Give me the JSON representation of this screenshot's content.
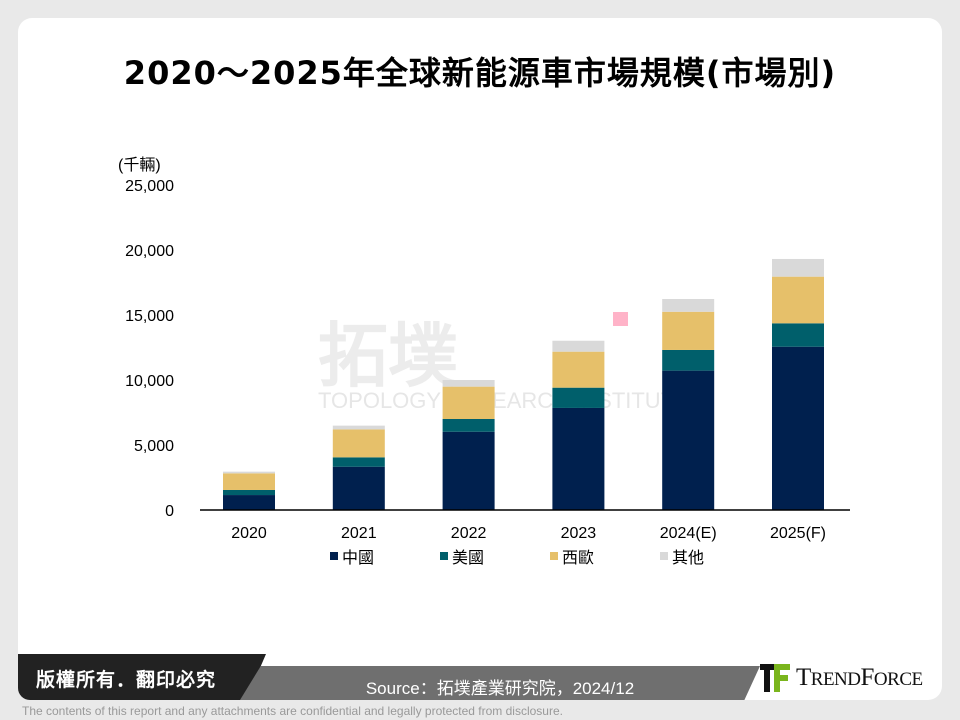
{
  "title": "2020～2025年全球新能源車市場規模(市場別)",
  "chart_data": {
    "type": "bar",
    "stacked": true,
    "title": "2020～2025年全球新能源車市場規模(市場別)",
    "ylabel": "(千輛)",
    "xlabel": "",
    "ylim": [
      0,
      25000
    ],
    "yticks": [
      "0",
      "5,000",
      "10,000",
      "15,000",
      "20,000",
      "25,000"
    ],
    "ytick_values": [
      0,
      5000,
      10000,
      15000,
      20000,
      25000
    ],
    "grid": false,
    "legend_position": "bottom",
    "categories": [
      "2020",
      "2021",
      "2022",
      "2023",
      "2024(E)",
      "2025(F)"
    ],
    "series": [
      {
        "name": "中國",
        "color": "#00204e",
        "values": [
          1150,
          3330,
          6020,
          7850,
          10720,
          12560
        ]
      },
      {
        "name": "美國",
        "color": "#005f6b",
        "values": [
          390,
          720,
          980,
          1560,
          1590,
          1800
        ]
      },
      {
        "name": "西歐",
        "color": "#e6c06a",
        "values": [
          1280,
          2150,
          2490,
          2770,
          2940,
          3590
        ]
      },
      {
        "name": "其他",
        "color": "#d9d9d9",
        "values": [
          130,
          290,
          510,
          840,
          980,
          1360
        ]
      }
    ]
  },
  "watermark": {
    "cn": "拓墣",
    "en": "TOPOLOGY RESEARCH INSTITUTE"
  },
  "footer": {
    "copyright": "版權所有．翻印必究",
    "source": "Source：拓墣產業研究院，2024/12",
    "logo": "TRENDFORCE",
    "disclaimer": "The contents of this report and any attachments are confidential and legally protected from disclosure."
  }
}
